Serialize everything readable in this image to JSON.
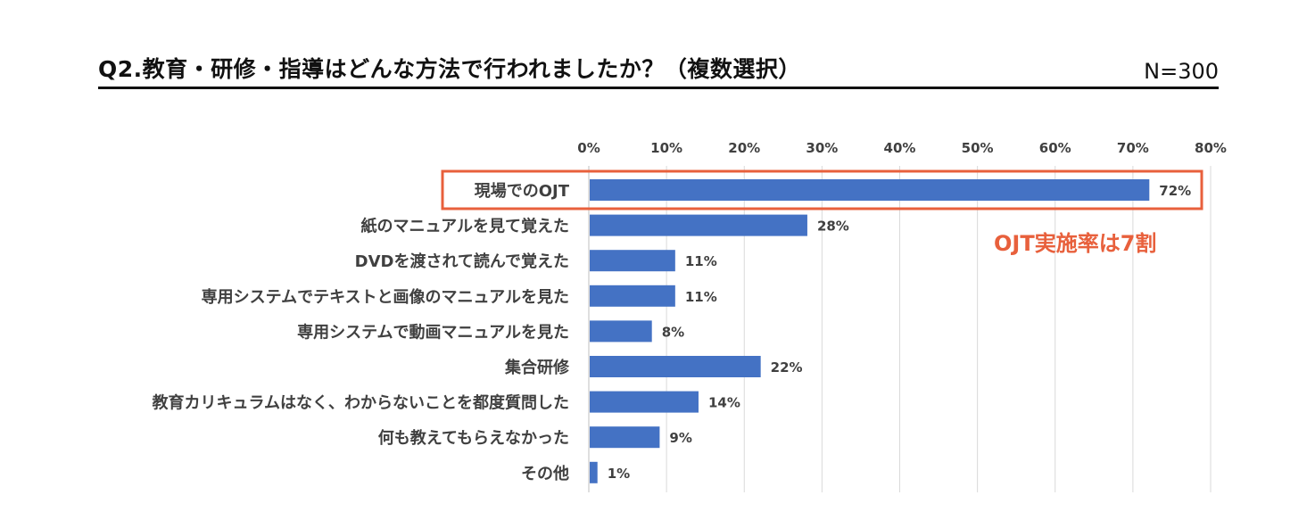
{
  "title": "Q2.教育・研修・指導はどんな方法で行われましたか？（複数選択）",
  "sample_size": "N=300",
  "callout": "OJT実施率は7割",
  "colors": {
    "bar": "#4472c4",
    "highlight": "#e8603c",
    "grid": "#d9d9d9"
  },
  "chart_data": {
    "type": "bar",
    "orientation": "horizontal",
    "title": "",
    "xlabel": "",
    "ylabel": "",
    "xlim": [
      0,
      80
    ],
    "x_ticks": [
      "0%",
      "10%",
      "20%",
      "30%",
      "40%",
      "50%",
      "60%",
      "70%",
      "80%"
    ],
    "axis_position": "top",
    "grid": true,
    "categories": [
      "現場でのOJT",
      "紙のマニュアルを見て覚えた",
      "DVDを渡されて読んで覚えた",
      "専用システムでテキストと画像のマニュアルを見た",
      "専用システムで動画マニュアルを見た",
      "集合研修",
      "教育カリキュラムはなく、わからないことを都度質問した",
      "何も教えてもらえなかった",
      "その他"
    ],
    "values": [
      72,
      28,
      11,
      11,
      8,
      22,
      14,
      9,
      1
    ],
    "data_labels": [
      "72%",
      "28%",
      "11%",
      "11%",
      "8%",
      "22%",
      "14%",
      "9%",
      "1%"
    ],
    "highlighted_category": "現場でのOJT"
  }
}
